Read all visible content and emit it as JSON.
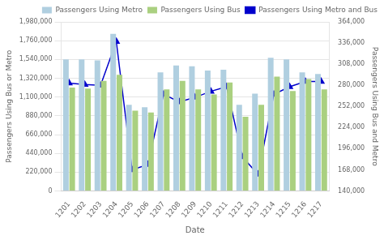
{
  "chart_data": {
    "type": "bar",
    "categories": [
      "1201",
      "1202",
      "1203",
      "1204",
      "1205",
      "1206",
      "1207",
      "1208",
      "1209",
      "1210",
      "1211",
      "1212",
      "1213",
      "1214",
      "1215",
      "1216",
      "1217"
    ],
    "series": [
      {
        "name": "Passengers Using Metro",
        "color": "#b0cfe0",
        "type": "bar",
        "values": [
          1540000,
          1540000,
          1530000,
          1840000,
          1010000,
          980000,
          1390000,
          1470000,
          1460000,
          1410000,
          1420000,
          1010000,
          1140000,
          1560000,
          1540000,
          1390000,
          1370000
        ]
      },
      {
        "name": "Passengers Using Bus",
        "color": "#aad080",
        "type": "bar",
        "values": [
          1210000,
          1200000,
          1290000,
          1360000,
          940000,
          920000,
          1190000,
          1290000,
          1190000,
          1130000,
          1270000,
          870000,
          1010000,
          1340000,
          1170000,
          1310000,
          1190000
        ]
      },
      {
        "name": "Passengers Using Metro and Bus",
        "color": "#0000cc",
        "type": "line",
        "marker": "triangle",
        "axis": "y2",
        "values": [
          283000,
          281000,
          280000,
          338000,
          168000,
          175000,
          268000,
          258000,
          264000,
          272000,
          278000,
          185000,
          162000,
          268000,
          278000,
          285000,
          285000
        ]
      }
    ],
    "xlabel": "Date",
    "ylabel": "Passengers Using Bus or Metro",
    "y2label": "Passengers Using Bus and Metro",
    "ylim": [
      0,
      1980000
    ],
    "yticks": [
      0,
      {
        "value": 220000,
        "label": "220,000"
      },
      {
        "value": 440000,
        "label": "440,000"
      },
      {
        "value": 660000,
        "label": "660,000"
      },
      {
        "value": 880000,
        "label": "880,000"
      },
      {
        "value": 1100000,
        "label": "1,100,000"
      },
      {
        "value": 1320000,
        "label": "1,320,000"
      },
      {
        "value": 1540000,
        "label": "1,540,000"
      },
      {
        "value": 1760000,
        "label": "1,760,000"
      },
      {
        "value": 1980000,
        "label": "1,980,000"
      }
    ],
    "y2lim": [
      140000,
      364000
    ],
    "y2ticks": [
      {
        "value": 140000,
        "label": "140,000"
      },
      {
        "value": 168000,
        "label": "168,000"
      },
      {
        "value": 196000,
        "label": "196,000"
      },
      {
        "value": 224000,
        "label": "224,000"
      },
      {
        "value": 252000,
        "label": "252,000"
      },
      {
        "value": 280000,
        "label": "280,000"
      },
      {
        "value": 308000,
        "label": "308,000"
      },
      {
        "value": 336000,
        "label": "336,000"
      },
      {
        "value": 364000,
        "label": "364,000"
      }
    ],
    "grid": true,
    "legend": "upper right"
  }
}
